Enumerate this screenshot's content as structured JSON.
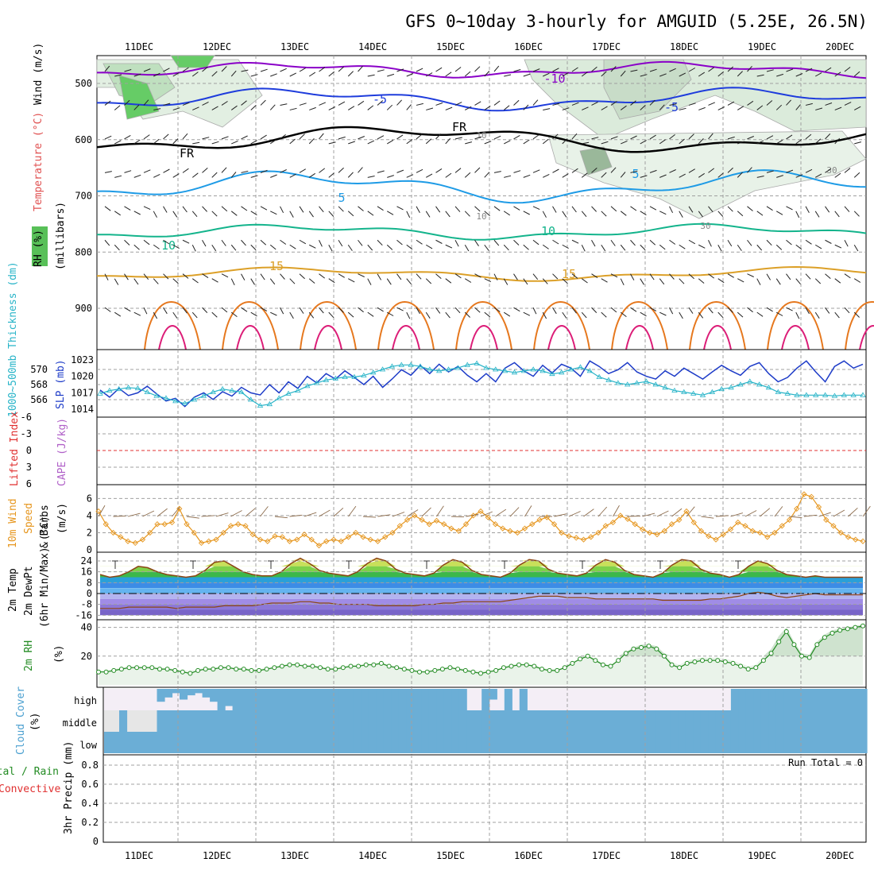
{
  "title": "GFS 0~10day 3-hourly for AMGUID (5.25E, 26.5N)",
  "x_labels": [
    "11DEC",
    "12DEC",
    "13DEC",
    "14DEC",
    "15DEC",
    "16DEC",
    "17DEC",
    "18DEC",
    "19DEC",
    "20DEC"
  ],
  "colors": {
    "grid": "#a0a0a0",
    "purple": "#8a00c8",
    "blue": "#1e3cdc",
    "cyan": "#1e9be6",
    "green": "#14b48c",
    "orange": "#dca028",
    "darkorange": "#e6781e",
    "magenta": "#dc1e78",
    "slp": "#1e3cc8",
    "thick": "#28b4c8",
    "wind": "#e6961e",
    "rh": "#228b22",
    "cloud": "#6baed6",
    "rhfill": "#eaf3ea"
  },
  "panels": {
    "upper": {
      "ylabel_parts": [
        "RH (%)",
        "Temperature (°C)",
        "Wind (m/s)"
      ],
      "ylabel_units": "(millibars)",
      "contour_labels": [
        "-10",
        "-5",
        "-5",
        "FR",
        "FR",
        "5",
        "5",
        "10",
        "10",
        "15",
        "15",
        "10",
        "10",
        "30",
        "30"
      ],
      "chart_data": {
        "type": "cross-section",
        "y_axis": "pressure (mb)",
        "y_ticks": [
          500,
          600,
          700,
          800,
          900
        ],
        "ylim": [
          1000,
          450
        ],
        "temperature_isotherms_C": [
          -10,
          -5,
          0,
          5,
          10,
          15,
          20,
          25
        ]
      }
    },
    "slp": {
      "ylabel_left": "1000~500mb Thickness (dm)",
      "ylabel_right": "SLP (mb)",
      "chart_data": {
        "type": "line",
        "left_ticks": [
          "570",
          "568",
          "566"
        ],
        "right_ticks": [
          "1023",
          "1020",
          "1017",
          "1014"
        ],
        "slp_mb": [
          1017.5,
          1016.2,
          1017.8,
          1016.5,
          1017.0,
          1018.2,
          1016.8,
          1015.5,
          1016.0,
          1014.5,
          1016.2,
          1017.0,
          1015.8,
          1017.2,
          1016.4,
          1018.0,
          1017.0,
          1016.6,
          1018.5,
          1017.0,
          1019.0,
          1017.8,
          1020.0,
          1018.8,
          1020.5,
          1019.5,
          1021.0,
          1019.8,
          1018.5,
          1020.0,
          1018.0,
          1019.5,
          1021.2,
          1020.2,
          1022.0,
          1020.5,
          1022.2,
          1020.8,
          1021.8,
          1020.2,
          1019.0,
          1020.5,
          1019.0,
          1021.5,
          1022.5,
          1021.0,
          1020.0,
          1022.0,
          1020.6,
          1022.2,
          1021.5,
          1020.0,
          1022.8,
          1021.8,
          1020.5,
          1021.2,
          1022.5,
          1020.8,
          1020.0,
          1019.5,
          1021.0,
          1020.0,
          1021.5,
          1020.5,
          1019.5,
          1020.8,
          1022.0,
          1021.0,
          1020.2,
          1021.8,
          1022.5,
          1020.5,
          1019.0,
          1019.8,
          1021.5,
          1022.8,
          1020.8,
          1019.0,
          1021.8,
          1022.8,
          1021.5,
          1022.2
        ],
        "thickness_dm": [
          566.8,
          567.2,
          567.4,
          567.6,
          567.5,
          567.0,
          566.5,
          566.2,
          565.8,
          565.5,
          566.0,
          566.5,
          567.0,
          567.4,
          567.2,
          567.0,
          566.0,
          565.2,
          565.4,
          566.2,
          566.8,
          567.2,
          567.8,
          568.2,
          568.6,
          568.8,
          569.0,
          569.0,
          569.2,
          569.6,
          570.0,
          570.4,
          570.6,
          570.6,
          570.4,
          570.0,
          569.8,
          570.0,
          570.2,
          570.6,
          570.8,
          570.2,
          570.0,
          569.8,
          569.6,
          569.8,
          570.0,
          569.8,
          569.4,
          569.6,
          570.0,
          570.3,
          569.8,
          569.0,
          568.6,
          568.2,
          568.0,
          568.2,
          568.4,
          568.0,
          567.6,
          567.2,
          567.0,
          566.8,
          566.6,
          567.0,
          567.4,
          567.6,
          568.0,
          568.4,
          568.0,
          567.6,
          567.0,
          566.8,
          566.6,
          566.6,
          566.6,
          566.6,
          566.5,
          566.6,
          566.6,
          566.6
        ]
      }
    },
    "li": {
      "ylabel_left": "Lifted Index",
      "ylabel_right": "CAPE (J/kg)",
      "chart_data": {
        "type": "line",
        "ticks": [
          "-6",
          "-3",
          "0",
          "3",
          "6"
        ],
        "lifted_index": [],
        "cape": []
      }
    },
    "wind": {
      "ylabel": "10m Wind Speed & Barbs (m/s)",
      "ylabel_parts": [
        "10m Wind",
        "Speed",
        "& Barbs",
        "(m/s)"
      ],
      "chart_data": {
        "type": "line",
        "ticks": [
          "6",
          "4",
          "2",
          "0"
        ],
        "ylim": [
          0,
          7
        ],
        "speed_ms": [
          4.5,
          3.0,
          2.0,
          1.5,
          1.0,
          0.8,
          1.2,
          2.0,
          3.0,
          3.0,
          3.2,
          4.8,
          3.0,
          2.0,
          0.8,
          1.0,
          1.2,
          2.0,
          2.8,
          3.0,
          2.8,
          1.8,
          1.2,
          1.0,
          1.6,
          1.5,
          1.0,
          1.2,
          1.8,
          1.2,
          0.5,
          1.0,
          1.2,
          1.0,
          1.5,
          2.0,
          1.5,
          1.2,
          1.0,
          1.5,
          2.0,
          2.8,
          3.5,
          4.0,
          3.5,
          3.0,
          3.4,
          3.0,
          2.5,
          2.2,
          3.0,
          4.0,
          4.5,
          3.8,
          3.0,
          2.5,
          2.2,
          2.0,
          2.5,
          3.0,
          3.5,
          3.8,
          3.0,
          2.0,
          1.6,
          1.4,
          1.2,
          1.5,
          2.0,
          2.8,
          3.2,
          4.0,
          3.6,
          3.0,
          2.4,
          2.0,
          1.8,
          2.2,
          3.0,
          3.5,
          4.5,
          3.2,
          2.2,
          1.6,
          1.2,
          1.8,
          2.4,
          3.2,
          2.8,
          2.2,
          2.0,
          1.5,
          2.0,
          2.8,
          3.5,
          4.8,
          6.5,
          6.2,
          5.0,
          3.5,
          2.8,
          2.0,
          1.5,
          1.2,
          1.0
        ]
      }
    },
    "temp": {
      "ylabel_parts": [
        "2m Temp",
        "2m DewPt",
        "(6hr Min/Max) (°C)"
      ],
      "chart_data": {
        "type": "area",
        "ticks": [
          "24",
          "16",
          "8",
          "0",
          "-8",
          "-16"
        ],
        "ylim": [
          -16,
          30
        ],
        "temp_C": [
          14,
          12,
          13,
          16,
          20,
          19,
          16,
          14,
          13,
          12,
          13,
          17,
          23,
          24,
          20,
          16,
          14,
          13,
          13,
          16,
          22,
          26,
          22,
          17,
          15,
          14,
          13,
          16,
          22,
          26,
          24,
          18,
          15,
          14,
          13,
          15,
          21,
          25,
          23,
          17,
          14,
          13,
          12,
          15,
          21,
          25,
          24,
          18,
          15,
          14,
          13,
          15,
          21,
          25,
          23,
          17,
          14,
          13,
          12,
          15,
          21,
          25,
          24,
          18,
          15,
          14,
          12,
          14,
          20,
          24,
          22,
          17,
          14,
          13,
          12,
          13,
          12,
          12,
          12,
          12,
          12
        ],
        "dewpoint_C": [
          -11,
          -11,
          -11,
          -10,
          -10,
          -10,
          -10,
          -10,
          -11,
          -10,
          -10,
          -10,
          -10,
          -9,
          -9,
          -9,
          -9,
          -8,
          -7,
          -7,
          -7,
          -6,
          -6,
          -7,
          -7,
          -8,
          -8,
          -8,
          -8,
          -9,
          -9,
          -9,
          -9,
          -9,
          -8,
          -8,
          -7,
          -7,
          -6,
          -6,
          -6,
          -6,
          -6,
          -5,
          -4,
          -3,
          -2,
          -2,
          -2,
          -3,
          -3,
          -3,
          -4,
          -4,
          -4,
          -4,
          -4,
          -4,
          -4,
          -5,
          -5,
          -5,
          -5,
          -5,
          -4,
          -4,
          -3,
          -2,
          0,
          1,
          0,
          -2,
          -3,
          -2,
          -1,
          0,
          -1,
          -1,
          -1,
          -1,
          -1
        ]
      }
    },
    "rh": {
      "ylabel": "2m RH",
      "ylabel_units": "(%)",
      "chart_data": {
        "type": "line",
        "ticks": [
          "20",
          "40"
        ],
        "ylim": [
          0,
          40
        ],
        "rh_pct": [
          9,
          9,
          10,
          11,
          12,
          12,
          12,
          12,
          11,
          11,
          10,
          9,
          8,
          10,
          11,
          11,
          12,
          12,
          11,
          11,
          10,
          10,
          11,
          12,
          13,
          14,
          14,
          13,
          13,
          12,
          11,
          11,
          12,
          13,
          13,
          14,
          14,
          15,
          13,
          12,
          11,
          10,
          9,
          9,
          10,
          11,
          12,
          11,
          10,
          9,
          8,
          9,
          10,
          12,
          13,
          14,
          14,
          13,
          11,
          10,
          10,
          12,
          15,
          18,
          20,
          17,
          14,
          13,
          17,
          22,
          25,
          26,
          27,
          25,
          20,
          14,
          12,
          15,
          16,
          17,
          17,
          17,
          16,
          15,
          13,
          11,
          12,
          17,
          22,
          30,
          37,
          28,
          20,
          19,
          28,
          33,
          36,
          38,
          39,
          40,
          41
        ],
        "rh_max": [
          10,
          10,
          11,
          12,
          13,
          13,
          13,
          13,
          12,
          12,
          11,
          10,
          10,
          11,
          12,
          12,
          13,
          13,
          12,
          12,
          11,
          11,
          12,
          13,
          14,
          15,
          15,
          14,
          14,
          13,
          12,
          12,
          13,
          14,
          14,
          15,
          15,
          16,
          14,
          13,
          12,
          11,
          10,
          10,
          11,
          12,
          13,
          12,
          11,
          10,
          10,
          10,
          11,
          13,
          14,
          15,
          15,
          14,
          12,
          11,
          11,
          13,
          16,
          19,
          21,
          18,
          15,
          14,
          18,
          23,
          26,
          28,
          28,
          27,
          22,
          16,
          14,
          17,
          18,
          19,
          19,
          19,
          18,
          17,
          15,
          13,
          14,
          20,
          25,
          34,
          40,
          30,
          22,
          21,
          30,
          35,
          38,
          39,
          40,
          41,
          42
        ]
      }
    },
    "cloud": {
      "ylabel": "Cloud Cover (%)",
      "ylabel_parts": [
        "Cloud Cover",
        "(%)"
      ],
      "level_labels": [
        "high",
        "middle",
        "low"
      ],
      "chart_data": {
        "type": "heatmap",
        "levels": [
          "high",
          "middle",
          "low"
        ],
        "high_pct": [
          0,
          0,
          0,
          0,
          0,
          0,
          0,
          60,
          40,
          20,
          50,
          30,
          20,
          40,
          60,
          100,
          80,
          100,
          100,
          100,
          100,
          100,
          100,
          100,
          100,
          100,
          100,
          100,
          100,
          100,
          100,
          100,
          100,
          100,
          100,
          100,
          100,
          100,
          100,
          100,
          100,
          100,
          100,
          100,
          100,
          100,
          100,
          100,
          0,
          0,
          100,
          50,
          0,
          100,
          0,
          100,
          0,
          0,
          0,
          0,
          0,
          0,
          0,
          0,
          0,
          0,
          0,
          0,
          0,
          0,
          0,
          0,
          0,
          0,
          0,
          0,
          0,
          0,
          0,
          0,
          0,
          0,
          0,
          100,
          100,
          100,
          100,
          100,
          100,
          100,
          100,
          100,
          100,
          100,
          100,
          100,
          100,
          100,
          100,
          100,
          100
        ],
        "middle_pct": [
          0,
          0,
          100,
          0,
          0,
          0,
          0,
          100,
          100,
          100,
          100,
          100,
          100,
          100,
          100,
          100,
          100,
          100,
          100,
          100,
          100,
          100,
          100,
          100,
          100,
          100,
          100,
          100,
          100,
          100,
          100,
          100,
          100,
          100,
          100,
          100,
          100,
          100,
          100,
          100,
          100,
          100,
          100,
          100,
          100,
          100,
          100,
          100,
          100,
          100,
          100,
          100,
          100,
          100,
          100,
          100,
          100,
          100,
          100,
          100,
          100,
          100,
          100,
          100,
          100,
          100,
          100,
          100,
          100,
          100,
          100,
          100,
          100,
          100,
          100,
          100,
          100,
          100,
          100,
          100,
          100,
          100,
          100,
          100,
          100,
          100,
          100,
          100,
          100,
          100,
          100,
          100,
          100,
          100,
          100,
          100,
          100,
          100,
          100,
          100,
          100
        ],
        "low_pct": [
          100,
          100,
          100,
          100,
          100,
          100,
          100,
          100,
          100,
          100,
          100,
          100,
          100,
          100,
          100,
          100,
          100,
          100,
          100,
          100,
          100,
          100,
          100,
          100,
          100,
          100,
          100,
          100,
          100,
          100,
          100,
          100,
          100,
          100,
          100,
          100,
          100,
          100,
          100,
          100,
          100,
          100,
          100,
          100,
          100,
          100,
          100,
          100,
          100,
          100,
          100,
          100,
          100,
          100,
          100,
          100,
          100,
          100,
          100,
          100,
          100,
          100,
          100,
          100,
          100,
          100,
          100,
          100,
          100,
          100,
          100,
          100,
          100,
          100,
          100,
          100,
          100,
          100,
          100,
          100,
          100,
          100,
          100,
          100,
          100,
          100,
          100,
          100,
          100,
          100,
          100,
          100,
          100,
          100,
          100,
          100,
          100,
          100,
          100,
          100,
          100
        ]
      }
    },
    "precip": {
      "ylabel_parts": [
        "Total / Rain",
        "Convective",
        "3hr Precip (mm)"
      ],
      "run_total": "Run Total = 0",
      "chart_data": {
        "type": "bar",
        "ticks": [
          "0.8",
          "0.6",
          "0.4",
          "0.2",
          "0"
        ],
        "ylim": [
          0,
          0.9
        ],
        "precip_mm": [],
        "run_total_mm": 0
      }
    }
  }
}
